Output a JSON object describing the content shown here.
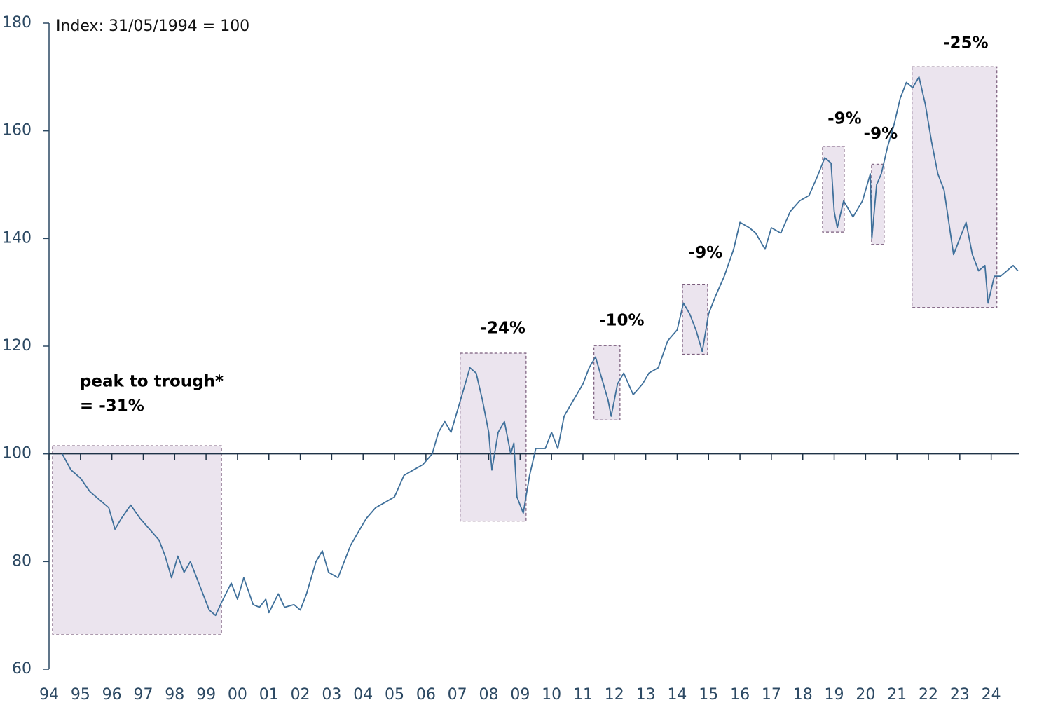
{
  "chart_data": {
    "type": "line",
    "subtitle": "Index: 31/05/1994 = 100",
    "reference_line": 100,
    "x": [
      1994.42,
      1994.7,
      1995.0,
      1995.3,
      1995.6,
      1995.9,
      1996.1,
      1996.3,
      1996.6,
      1996.9,
      1997.2,
      1997.5,
      1997.7,
      1997.9,
      1998.1,
      1998.3,
      1998.5,
      1998.7,
      1998.9,
      1999.1,
      1999.3,
      1999.5,
      1999.8,
      2000.0,
      2000.2,
      2000.5,
      2000.7,
      2000.9,
      2001.0,
      2001.3,
      2001.5,
      2001.8,
      2002.0,
      2002.2,
      2002.5,
      2002.7,
      2002.9,
      2003.2,
      2003.4,
      2003.6,
      2003.9,
      2004.1,
      2004.4,
      2004.7,
      2005.0,
      2005.3,
      2005.6,
      2005.9,
      2006.2,
      2006.4,
      2006.6,
      2006.8,
      2007.0,
      2007.2,
      2007.4,
      2007.6,
      2007.8,
      2008.0,
      2008.1,
      2008.3,
      2008.5,
      2008.7,
      2008.8,
      2008.9,
      2009.1,
      2009.3,
      2009.5,
      2009.8,
      2010.0,
      2010.2,
      2010.4,
      2010.6,
      2010.8,
      2011.0,
      2011.2,
      2011.4,
      2011.6,
      2011.8,
      2011.9,
      2012.1,
      2012.3,
      2012.6,
      2012.9,
      2013.1,
      2013.4,
      2013.7,
      2014.0,
      2014.2,
      2014.4,
      2014.6,
      2014.8,
      2015.0,
      2015.2,
      2015.5,
      2015.8,
      2016.0,
      2016.3,
      2016.5,
      2016.8,
      2017.0,
      2017.3,
      2017.6,
      2017.9,
      2018.2,
      2018.5,
      2018.7,
      2018.9,
      2019.0,
      2019.1,
      2019.3,
      2019.6,
      2019.9,
      2020.1,
      2020.15,
      2020.2,
      2020.35,
      2020.5,
      2020.7,
      2020.9,
      2021.1,
      2021.3,
      2021.5,
      2021.7,
      2021.9,
      2022.1,
      2022.3,
      2022.5,
      2022.7,
      2022.8,
      2023.0,
      2023.2,
      2023.4,
      2023.6,
      2023.8,
      2023.9,
      2024.1,
      2024.3,
      2024.5,
      2024.7,
      2024.85
    ],
    "series": [
      {
        "color": "#3f709b",
        "values": [
          100,
          97,
          95.5,
          93,
          91.5,
          90,
          86,
          88,
          90.5,
          88,
          86,
          84,
          81,
          77,
          81,
          78,
          80,
          77,
          74,
          71,
          70,
          72.5,
          76,
          73,
          77,
          72,
          71.5,
          73,
          70.5,
          74,
          71.5,
          72,
          71,
          74,
          80,
          82,
          78,
          77,
          80,
          83,
          86,
          88,
          90,
          91,
          92,
          96,
          97,
          98,
          100,
          104,
          106,
          104,
          108,
          112,
          116,
          115,
          110,
          104,
          97,
          104,
          106,
          100,
          102,
          92,
          89,
          96,
          101,
          101,
          104,
          101,
          107,
          109,
          111,
          113,
          116,
          118,
          114,
          110,
          107,
          113,
          115,
          111,
          113,
          115,
          116,
          121,
          123,
          128,
          126,
          123,
          119,
          126,
          129,
          133,
          138,
          143,
          142,
          141,
          138,
          142,
          141,
          145,
          147,
          148,
          152,
          155,
          154,
          145,
          142,
          147,
          144,
          147,
          151,
          152,
          140,
          150,
          152,
          157,
          161,
          166,
          169,
          168,
          170,
          165,
          158,
          152,
          149,
          141,
          137,
          140,
          143,
          137,
          134,
          135,
          128,
          133,
          133,
          134,
          135,
          134
        ]
      }
    ],
    "xlim": [
      1994,
      2024.9
    ],
    "xticks": [
      {
        "value": 1994,
        "label": "94"
      },
      {
        "value": 1995,
        "label": "95"
      },
      {
        "value": 1996,
        "label": "96"
      },
      {
        "value": 1997,
        "label": "97"
      },
      {
        "value": 1998,
        "label": "98"
      },
      {
        "value": 1999,
        "label": "99"
      },
      {
        "value": 2000,
        "label": "00"
      },
      {
        "value": 2001,
        "label": "01"
      },
      {
        "value": 2002,
        "label": "02"
      },
      {
        "value": 2003,
        "label": "03"
      },
      {
        "value": 2004,
        "label": "04"
      },
      {
        "value": 2005,
        "label": "05"
      },
      {
        "value": 2006,
        "label": "06"
      },
      {
        "value": 2007,
        "label": "07"
      },
      {
        "value": 2008,
        "label": "08"
      },
      {
        "value": 2009,
        "label": "09"
      },
      {
        "value": 2010,
        "label": "10"
      },
      {
        "value": 2011,
        "label": "11"
      },
      {
        "value": 2012,
        "label": "12"
      },
      {
        "value": 2013,
        "label": "13"
      },
      {
        "value": 2014,
        "label": "14"
      },
      {
        "value": 2015,
        "label": "15"
      },
      {
        "value": 2016,
        "label": "16"
      },
      {
        "value": 2017,
        "label": "17"
      },
      {
        "value": 2018,
        "label": "18"
      },
      {
        "value": 2019,
        "label": "19"
      },
      {
        "value": 2020,
        "label": "20"
      },
      {
        "value": 2021,
        "label": "21"
      },
      {
        "value": 2022,
        "label": "22"
      },
      {
        "value": 2023,
        "label": "23"
      },
      {
        "value": 2024,
        "label": "24"
      }
    ],
    "ylim": [
      60,
      180
    ],
    "yticks": [
      60,
      80,
      100,
      120,
      140,
      160,
      180
    ],
    "annotations": [
      {
        "label": [
          "peak to trough*",
          "= -31%"
        ],
        "x": [
          1994.11,
          1999.49
        ],
        "y": [
          66.5,
          101.5
        ]
      },
      {
        "label": [
          "-24%"
        ],
        "x": [
          2007.09,
          2009.19
        ],
        "y": [
          87.5,
          118.7
        ]
      },
      {
        "label": [
          "-10%"
        ],
        "x": [
          2011.35,
          2012.18
        ],
        "y": [
          106.3,
          120.1
        ]
      },
      {
        "label": [
          "-9%"
        ],
        "x": [
          2014.17,
          2014.97
        ],
        "y": [
          118.5,
          131.5
        ]
      },
      {
        "label": [
          "-9%"
        ],
        "x": [
          2018.63,
          2019.32
        ],
        "y": [
          141.2,
          157.1
        ]
      },
      {
        "label": [
          "-9%"
        ],
        "x": [
          2020.19,
          2020.59
        ],
        "y": [
          138.9,
          153.8
        ]
      },
      {
        "label": [
          "-25%"
        ],
        "x": [
          2021.48,
          2024.18
        ],
        "y": [
          127.2,
          171.9
        ]
      }
    ]
  }
}
